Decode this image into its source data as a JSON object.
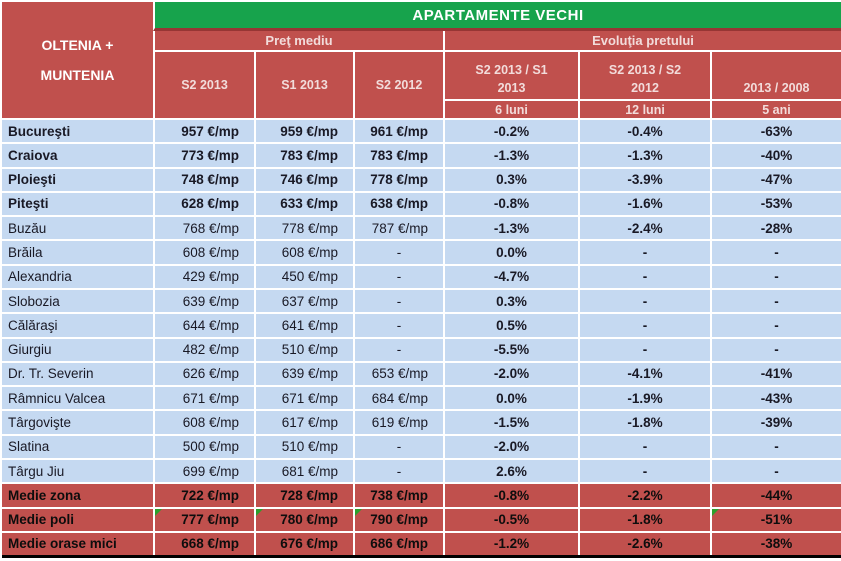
{
  "title": "APARTAMENTE VECHI",
  "region_header": "OLTENIA + MUNTENIA",
  "groups": {
    "price": "Preţ mediu",
    "evolution": "Evoluţia pretului"
  },
  "price_columns": [
    "S2 2013",
    "S1 2013",
    "S2 2012"
  ],
  "evolution_columns": {
    "ratios": [
      "S2 2013  / S1\n2013",
      "S2 2013  / S2\n2012",
      "2013  / 2008"
    ],
    "spans": [
      "6 luni",
      "12 luni",
      "5 ani"
    ]
  },
  "table": {
    "rows": [
      {
        "city": "Bucureşti",
        "values": [
          "957 €/mp",
          "959 €/mp",
          "961 €/mp",
          "-0.2%",
          "-0.4%",
          "-63%"
        ],
        "bold": true,
        "summary": false
      },
      {
        "city": "Craiova",
        "values": [
          "773 €/mp",
          "783 €/mp",
          "783 €/mp",
          "-1.3%",
          "-1.3%",
          "-40%"
        ],
        "bold": true,
        "summary": false
      },
      {
        "city": "Ploieşti",
        "values": [
          "748 €/mp",
          "746 €/mp",
          "778 €/mp",
          "0.3%",
          "-3.9%",
          "-47%"
        ],
        "bold": true,
        "summary": false
      },
      {
        "city": "Piteşti",
        "values": [
          "628 €/mp",
          "633 €/mp",
          "638 €/mp",
          "-0.8%",
          "-1.6%",
          "-53%"
        ],
        "bold": true,
        "summary": false
      },
      {
        "city": "Buzău",
        "values": [
          "768 €/mp",
          "778 €/mp",
          "787 €/mp",
          "-1.3%",
          "-2.4%",
          "-28%"
        ],
        "bold": false,
        "summary": false
      },
      {
        "city": "Brăila",
        "values": [
          "608 €/mp",
          "608 €/mp",
          "-",
          "0.0%",
          "-",
          "-"
        ],
        "bold": false,
        "summary": false
      },
      {
        "city": "Alexandria",
        "values": [
          "429 €/mp",
          "450 €/mp",
          "-",
          "-4.7%",
          "-",
          "-"
        ],
        "bold": false,
        "summary": false
      },
      {
        "city": "Slobozia",
        "values": [
          "639 €/mp",
          "637 €/mp",
          "-",
          "0.3%",
          "-",
          "-"
        ],
        "bold": false,
        "summary": false
      },
      {
        "city": "Călăraşi",
        "values": [
          "644 €/mp",
          "641 €/mp",
          "-",
          "0.5%",
          "-",
          "-"
        ],
        "bold": false,
        "summary": false
      },
      {
        "city": "Giurgiu",
        "values": [
          "482 €/mp",
          "510 €/mp",
          "-",
          "-5.5%",
          "-",
          "-"
        ],
        "bold": false,
        "summary": false
      },
      {
        "city": "Dr. Tr. Severin",
        "values": [
          "626 €/mp",
          "639 €/mp",
          "653 €/mp",
          "-2.0%",
          "-4.1%",
          "-41%"
        ],
        "bold": false,
        "summary": false
      },
      {
        "city": "Râmnicu Valcea",
        "values": [
          "671 €/mp",
          "671 €/mp",
          "684 €/mp",
          "0.0%",
          "-1.9%",
          "-43%"
        ],
        "bold": false,
        "summary": false
      },
      {
        "city": "Târgovişte",
        "values": [
          "608 €/mp",
          "617 €/mp",
          "619 €/mp",
          "-1.5%",
          "-1.8%",
          "-39%"
        ],
        "bold": false,
        "summary": false
      },
      {
        "city": "Slatina",
        "values": [
          "500 €/mp",
          "510 €/mp",
          "-",
          "-2.0%",
          "-",
          "-"
        ],
        "bold": false,
        "summary": false
      },
      {
        "city": "Târgu Jiu",
        "values": [
          "699 €/mp",
          "681 €/mp",
          "-",
          "2.6%",
          "-",
          "-"
        ],
        "bold": false,
        "summary": false
      },
      {
        "city": "Medie zona",
        "values": [
          "722 €/mp",
          "728 €/mp",
          "738 €/mp",
          "-0.8%",
          "-2.2%",
          "-44%"
        ],
        "bold": true,
        "summary": true
      },
      {
        "city": "Medie poli",
        "values": [
          "777 €/mp",
          "780 €/mp",
          "790 €/mp",
          "-0.5%",
          "-1.8%",
          "-51%"
        ],
        "bold": true,
        "summary": true,
        "markers": [
          0,
          1,
          2,
          5
        ]
      },
      {
        "city": "Medie orase mici",
        "values": [
          "668 €/mp",
          "676 €/mp",
          "686 €/mp",
          "-1.2%",
          "-2.6%",
          "-38%"
        ],
        "bold": true,
        "summary": true
      }
    ]
  },
  "colors": {
    "green": "#17A34C",
    "header_red": "#C0504D",
    "dark_red_line": "#963634",
    "row_blue": "#C5D9F1",
    "summary_red": "#C0504D",
    "grid_white": "#FFFFFF",
    "marker_green": "#2CA02C",
    "text_dark": "#191925",
    "header_text": "#F2DCDB",
    "title_text": "#FFFFFF",
    "bottom_border": "#000000"
  }
}
